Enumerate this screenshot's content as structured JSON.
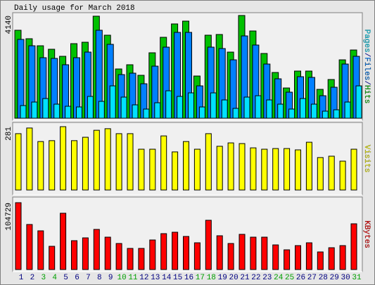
{
  "chart_data": {
    "title": "Daily usage for March 2018",
    "categories": [
      "1",
      "2",
      "3",
      "4",
      "5",
      "6",
      "7",
      "8",
      "9",
      "10",
      "11",
      "12",
      "13",
      "14",
      "15",
      "16",
      "17",
      "18",
      "19",
      "20",
      "21",
      "22",
      "23",
      "24",
      "25",
      "26",
      "27",
      "28",
      "29",
      "30",
      "31"
    ],
    "category_colors": [
      "#000080",
      "#000080",
      "#00a000",
      "#00a000",
      "#000080",
      "#000080",
      "#000080",
      "#000080",
      "#000080",
      "#00a000",
      "#00a000",
      "#000080",
      "#000080",
      "#000080",
      "#000080",
      "#000080",
      "#00a000",
      "#00a000",
      "#000080",
      "#000080",
      "#000080",
      "#000080",
      "#000080",
      "#00a000",
      "#00a000",
      "#000080",
      "#000080",
      "#000080",
      "#000080",
      "#000080",
      "#00a000"
    ],
    "label_separator": "/",
    "panels": [
      {
        "type": "bar",
        "ylim": [
          0,
          4140
        ],
        "yticks": [
          4140
        ],
        "series": [
          {
            "name": "Hits",
            "color": "#00c000",
            "values": [
              3545,
              3204,
              2920,
              2779,
              2495,
              3005,
              3062,
              4112,
              3346,
              1985,
              2155,
              1730,
              2637,
              3261,
              3800,
              3913,
              1701,
              3346,
              3374,
              2665,
              4140,
              3516,
              2609,
              1843,
              1219,
              1900,
              1900,
              1163,
              1560,
              2353,
              2750
            ]
          },
          {
            "name": "Files",
            "color": "#0080ff",
            "values": [
              3176,
              2920,
              2439,
              2410,
              2155,
              2439,
              2665,
              3545,
              2977,
              1758,
              1815,
              1389,
              2098,
              2864,
              3459,
              3459,
              1304,
              2864,
              2807,
              2353,
              3317,
              2949,
              2183,
              1588,
              1049,
              1673,
              1645,
              907,
              1248,
              2183,
              2495
            ]
          },
          {
            "name": "Pages",
            "color": "#00e0ff",
            "values": [
              510,
              652,
              794,
              567,
              482,
              454,
              879,
              680,
              1304,
              851,
              539,
              369,
              624,
              1106,
              879,
              1021,
              454,
              1021,
              737,
              397,
              851,
              907,
              737,
              567,
              369,
              794,
              567,
              284,
              340,
              652,
              1304
            ]
          }
        ]
      },
      {
        "type": "bar",
        "ylim": [
          0,
          281
        ],
        "yticks": [
          281
        ],
        "series": [
          {
            "name": "Visits",
            "color": "#ffff00",
            "values": [
              250,
              275,
              215,
              219,
              281,
              219,
              234,
              265,
              272,
              250,
              250,
              181,
              181,
              240,
              169,
              215,
              181,
              250,
              194,
              209,
              206,
              187,
              181,
              184,
              184,
              178,
              212,
              144,
              150,
              128,
              181
            ]
          }
        ]
      },
      {
        "type": "bar",
        "ylim": [
          0,
          104729
        ],
        "yticks": [
          104729
        ],
        "series": [
          {
            "name": "KBytes",
            "color": "#ff0000",
            "values": [
              104729,
              70553,
              60632,
              36379,
              88193,
              45198,
              49608,
              62837,
              50711,
              40789,
              33072,
              33072,
              46301,
              56223,
              58428,
              51813,
              41891,
              77168,
              52916,
              40789,
              55120,
              50711,
              50711,
              38584,
              30867,
              37482,
              41891,
              27561,
              34175,
              37482,
              71655
            ]
          }
        ]
      }
    ]
  }
}
